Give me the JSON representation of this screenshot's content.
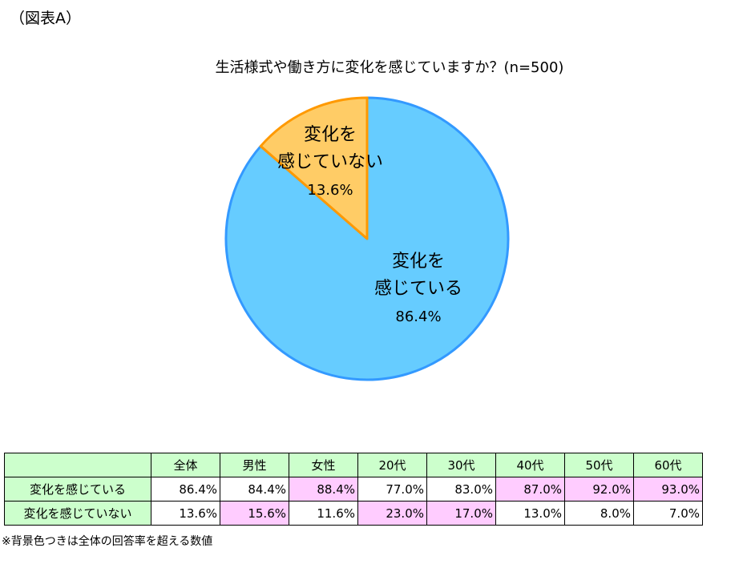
{
  "figure_label": "（図表A）",
  "colors": {
    "changed": "#66ccff",
    "changed_edge": "#3399ff",
    "not_changed": "#ffcc66",
    "not_changed_edge": "#ff9900",
    "header_bg": "#ccffcc",
    "highlight_bg": "#ffccff"
  },
  "chart_data": {
    "type": "pie",
    "title": "生活様式や働き方に変化を感じていますか？(n=500)",
    "slices": [
      {
        "label_lines": [
          "変化を",
          "感じている"
        ],
        "value": 86.4,
        "value_label": "86.4%"
      },
      {
        "label_lines": [
          "変化を",
          "感じていない"
        ],
        "value": 13.6,
        "value_label": "13.6%"
      }
    ]
  },
  "table": {
    "headers": [
      "全体",
      "男性",
      "女性",
      "20代",
      "30代",
      "40代",
      "50代",
      "60代"
    ],
    "rows": [
      {
        "label": "変化を感じている",
        "values": [
          "86.4%",
          "84.4%",
          "88.4%",
          "77.0%",
          "83.0%",
          "87.0%",
          "92.0%",
          "93.0%"
        ],
        "highlight": [
          false,
          false,
          true,
          false,
          false,
          true,
          true,
          true
        ]
      },
      {
        "label": "変化を感じていない",
        "values": [
          "13.6%",
          "15.6%",
          "11.6%",
          "23.0%",
          "17.0%",
          "13.0%",
          "8.0%",
          "7.0%"
        ],
        "highlight": [
          false,
          true,
          false,
          true,
          true,
          false,
          false,
          false
        ]
      }
    ]
  },
  "note": "※背景色つきは全体の回答率を超える数値"
}
